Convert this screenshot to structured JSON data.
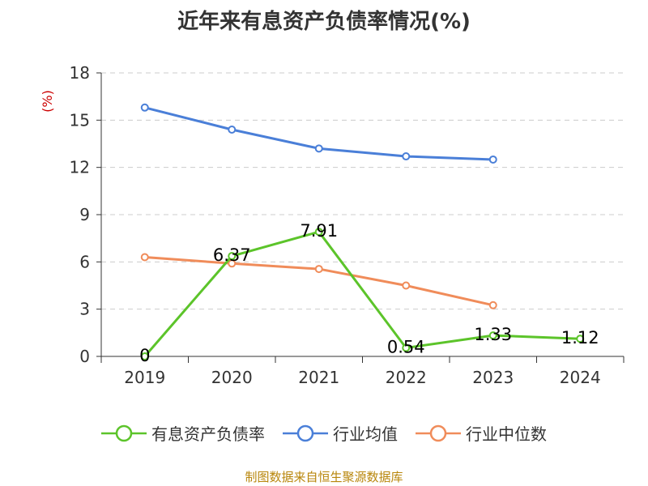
{
  "chart_data": {
    "type": "line",
    "title": "近年来有息资产负债率情况(%)",
    "ylabel": "(%)",
    "categories": [
      "2019",
      "2020",
      "2021",
      "2022",
      "2023",
      "2024"
    ],
    "ylim": [
      0,
      18
    ],
    "yticks": [
      0,
      3,
      6,
      9,
      12,
      15,
      18
    ],
    "grid": true,
    "legend_position": "bottom",
    "series": [
      {
        "name": "有息资产负债率",
        "color": "#5cc42a",
        "values": [
          0,
          6.37,
          7.91,
          0.54,
          1.33,
          1.12
        ],
        "labels": [
          "0",
          "6.37",
          "7.91",
          "0.54",
          "1.33",
          "1.12"
        ]
      },
      {
        "name": "行业均值",
        "color": "#4a7fd8",
        "values": [
          15.8,
          14.4,
          13.2,
          12.7,
          12.5,
          null
        ]
      },
      {
        "name": "行业中位数",
        "color": "#f08c5a",
        "values": [
          6.3,
          5.9,
          5.55,
          4.5,
          3.25,
          null
        ]
      }
    ]
  },
  "source_text": "制图数据来自恒生聚源数据库"
}
